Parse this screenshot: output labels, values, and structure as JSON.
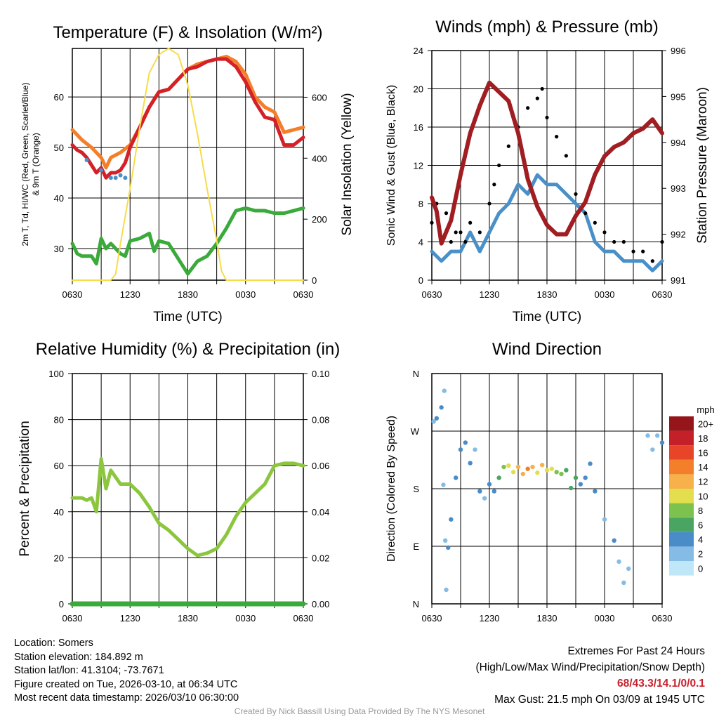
{
  "chart_data": [
    {
      "type": "line",
      "title": "Temperature (F) & Insolation (W/m²)",
      "xlabel": "Time (UTC)",
      "ylabel": "2m T, Td, HI/WC (Red, Green, Scarlet/Blue)",
      "ylabel2": "& 9m T (Orange)",
      "y2label": "Solar Insolation (Yellow)",
      "x_ticks": [
        "0630",
        "1230",
        "1830",
        "0030",
        "0630"
      ],
      "y_ticks": [
        30,
        40,
        50,
        60
      ],
      "y2_ticks": [
        0,
        200,
        400,
        600
      ],
      "ylim": [
        23.75,
        69.6
      ],
      "y2lim": [
        0,
        760
      ],
      "series": [
        {
          "name": "9m T",
          "color": "#f47f2a",
          "axis": "left",
          "x": [
            0,
            1,
            2,
            3,
            3.5,
            4,
            5,
            6,
            7,
            8,
            9,
            10,
            11,
            12,
            13,
            14,
            15,
            16,
            17,
            18,
            19,
            20,
            21,
            22,
            23,
            24
          ],
          "y": [
            53.5,
            51.5,
            50,
            48,
            46,
            48,
            49,
            50.5,
            54,
            58,
            61,
            61.5,
            63.5,
            65.5,
            66.5,
            67,
            67.5,
            68,
            67,
            64.5,
            60,
            58,
            57,
            53,
            53.5,
            54
          ]
        },
        {
          "name": "2m T",
          "color": "#d42027",
          "axis": "left",
          "x": [
            0,
            0.5,
            1,
            1.5,
            2,
            2.5,
            3,
            3.5,
            4,
            4.5,
            5,
            5.5,
            6,
            7,
            8,
            9,
            10,
            11,
            12,
            13,
            14,
            15,
            16,
            17,
            18,
            19,
            20,
            21,
            22,
            23,
            24
          ],
          "y": [
            50.5,
            49.5,
            49,
            48,
            46.5,
            45,
            46,
            44,
            45,
            45,
            45.5,
            47,
            50,
            54,
            58,
            61,
            61.5,
            63.5,
            65.5,
            66,
            67,
            67.5,
            67.5,
            66,
            63,
            59,
            56,
            55.5,
            50.5,
            50.5,
            52
          ]
        },
        {
          "name": "Td",
          "color": "#3aaa3a",
          "axis": "left",
          "x": [
            0,
            0.5,
            1,
            2,
            2.5,
            3,
            3.5,
            4,
            5,
            5.5,
            6,
            7,
            8,
            8.5,
            9,
            10,
            11,
            12,
            13,
            14,
            15,
            16,
            17,
            18,
            19,
            20,
            21,
            22,
            23,
            24
          ],
          "y": [
            31,
            29,
            28.5,
            28.5,
            27,
            32,
            30,
            31,
            29,
            28.5,
            31.5,
            32,
            33,
            29.5,
            31.5,
            31,
            28,
            25,
            27.5,
            28.5,
            31,
            34,
            37.5,
            38,
            37.5,
            37.5,
            37,
            37,
            37.5,
            38
          ]
        },
        {
          "name": "HI/WC",
          "color": "#4a90c8",
          "axis": "left",
          "type": "scatter",
          "x": [
            1.5,
            3,
            4,
            4.5,
            5,
            5.5
          ],
          "y": [
            47.5,
            45.5,
            44,
            44,
            44.5,
            44
          ]
        },
        {
          "name": "Solar Insolation",
          "color": "#f7dc4a",
          "axis": "right",
          "x": [
            0,
            4,
            4.5,
            5,
            6,
            7,
            8,
            9,
            10,
            11,
            12,
            13,
            14,
            15,
            15.5,
            16,
            24
          ],
          "y": [
            0,
            0,
            20,
            120,
            300,
            500,
            680,
            740,
            760,
            740,
            640,
            480,
            300,
            130,
            30,
            0,
            0
          ]
        }
      ]
    },
    {
      "type": "line",
      "title": "Winds (mph) & Pressure (mb)",
      "xlabel": "Time (UTC)",
      "ylabel": "Sonic Wind & Gust (Blue, Black)",
      "y2label": "Station Pressure (Maroon)",
      "x_ticks": [
        "0630",
        "1230",
        "1830",
        "0030",
        "0630"
      ],
      "y_ticks": [
        0,
        4,
        8,
        12,
        16,
        20,
        24
      ],
      "y2_ticks": [
        991,
        992,
        993,
        994,
        995,
        996
      ],
      "ylim": [
        0,
        24
      ],
      "y2lim": [
        991,
        996
      ],
      "series": [
        {
          "name": "Sonic Wind",
          "color": "#4a90c8",
          "axis": "left",
          "x": [
            0,
            1,
            2,
            3,
            4,
            5,
            6,
            7,
            8,
            9,
            10,
            11,
            12,
            13,
            14,
            15,
            16,
            17,
            18,
            19,
            20,
            21,
            22,
            23,
            24
          ],
          "y": [
            3,
            2,
            3,
            3,
            5,
            3,
            5,
            7,
            8,
            10,
            9,
            11,
            10,
            10,
            9,
            8,
            7,
            4,
            3,
            3,
            2,
            2,
            2,
            1,
            2
          ]
        },
        {
          "name": "Gust",
          "color": "#000000",
          "axis": "left",
          "type": "scatter",
          "x": [
            0,
            0.5,
            1,
            1.5,
            2,
            2.5,
            3,
            3.5,
            4,
            5,
            6,
            6.5,
            7,
            8,
            9,
            10,
            11,
            11.5,
            12,
            13,
            14,
            15,
            16,
            17,
            18,
            19,
            20,
            21,
            22,
            23,
            24
          ],
          "y": [
            6,
            8,
            4,
            7,
            4,
            5,
            5,
            4,
            6,
            5,
            8,
            10,
            12,
            14,
            16,
            18,
            19,
            20,
            17,
            15,
            13,
            9,
            7,
            6,
            5,
            4,
            4,
            3,
            3,
            2,
            4
          ]
        },
        {
          "name": "Station Pressure",
          "color": "#a01e22",
          "axis": "right",
          "x": [
            0,
            0.5,
            1,
            2,
            3,
            4,
            5,
            6,
            6.5,
            7,
            8,
            9,
            10,
            11,
            12,
            13,
            14,
            15,
            16,
            17,
            18,
            19,
            20,
            21,
            22,
            23,
            24
          ],
          "y": [
            992.8,
            992.5,
            991.8,
            992.3,
            993.3,
            994.2,
            994.8,
            995.3,
            995.2,
            995.1,
            994.9,
            994.2,
            993.2,
            992.6,
            992.2,
            992,
            992,
            992.4,
            992.7,
            993.3,
            993.7,
            993.9,
            994,
            994.2,
            994.3,
            994.5,
            994.2
          ]
        }
      ]
    },
    {
      "type": "line",
      "title": "Relative Humidity (%) & Precipitation (in)",
      "ylabel": "Percent & Precipitation",
      "x_ticks": [
        "0630",
        "1230",
        "1830",
        "0030",
        "0630"
      ],
      "y_ticks": [
        0,
        20,
        40,
        60,
        80,
        100
      ],
      "y2_ticks": [
        "0.00",
        "0.02",
        "0.04",
        "0.06",
        "0.08",
        "0.10"
      ],
      "ylim": [
        0,
        100
      ],
      "y2lim": [
        0,
        0.1
      ],
      "series": [
        {
          "name": "Relative Humidity",
          "color": "#8cc63f",
          "axis": "left",
          "x": [
            0,
            1,
            1.5,
            2,
            2.5,
            3,
            3.5,
            4,
            5,
            6,
            7,
            8,
            9,
            10,
            11,
            12,
            13,
            14,
            15,
            16,
            17,
            18,
            19,
            20,
            21,
            22,
            23,
            24
          ],
          "y": [
            46,
            46,
            45,
            46,
            40,
            63,
            50,
            58,
            52,
            52,
            48,
            42,
            35,
            32,
            28,
            24,
            21,
            22,
            24,
            30,
            38,
            44,
            48,
            52,
            60,
            61,
            61,
            60
          ]
        },
        {
          "name": "Precipitation",
          "color": "#3aaa3a",
          "axis": "right",
          "x": [
            0,
            24
          ],
          "y": [
            0,
            0
          ]
        }
      ]
    },
    {
      "type": "scatter",
      "title": "Wind Direction",
      "ylabel": "Direction (Colored By Speed)",
      "x_ticks": [
        "0630",
        "1230",
        "1830",
        "0030",
        "0630"
      ],
      "y_ticks": [
        "N",
        "E",
        "S",
        "W",
        "N"
      ],
      "ylim": [
        0,
        360
      ],
      "legend_title": "mph",
      "legend_labels": [
        "0",
        "2",
        "4",
        "6",
        "8",
        "10",
        "12",
        "14",
        "16",
        "18",
        "20+"
      ],
      "legend_colors": [
        "#bfe7f8",
        "#84bce6",
        "#4a8cc8",
        "#4aa462",
        "#7dc24f",
        "#e2de4e",
        "#f7b04a",
        "#f47f2a",
        "#e8442a",
        "#c4202a",
        "#96151a"
      ],
      "x": [
        0.2,
        0.5,
        1,
        1.3,
        1.2,
        1.4,
        1.5,
        1.7,
        2,
        2.5,
        3,
        3.5,
        4,
        4.5,
        5,
        5.5,
        6,
        6.5,
        7,
        7.5,
        8,
        8.5,
        9,
        9.5,
        10,
        10.5,
        11,
        11.5,
        12,
        12.5,
        13,
        13.5,
        14,
        14.5,
        15,
        15.5,
        16,
        16.5,
        17,
        18,
        19,
        19.5,
        20,
        20.5,
        22.5,
        23,
        23.5,
        24
      ],
      "direction": [
        285,
        290,
        307,
        333,
        186,
        99,
        22,
        88,
        132,
        197,
        241,
        252,
        220,
        241,
        176,
        165,
        187,
        176,
        197,
        214,
        216,
        206,
        214,
        203,
        211,
        214,
        205,
        217,
        209,
        211,
        206,
        203,
        209,
        181,
        197,
        187,
        197,
        219,
        176,
        132,
        99,
        66,
        33,
        55,
        263,
        241,
        263,
        252
      ],
      "speed": [
        2,
        4,
        3,
        1,
        2,
        2,
        1,
        3,
        3,
        3,
        3,
        4,
        3,
        2,
        3,
        2,
        4,
        3,
        6,
        8,
        9,
        10,
        11,
        12,
        14,
        12,
        10,
        11,
        9,
        10,
        8,
        7,
        6,
        6,
        5,
        4,
        4,
        3,
        3,
        2,
        3,
        2,
        2,
        1,
        1,
        2,
        2,
        3
      ]
    }
  ],
  "time_axis_label": "Time (UTC)",
  "info": {
    "location": "Location: Somers",
    "elevation": "Station elevation: 184.892 m",
    "latlon": "Station lat/lon: 41.3104; -73.7671",
    "created": "Figure created on Tue, 2026-03-10, at 06:34 UTC",
    "recent": "Most recent data timestamp: 2026/03/10 06:30:00"
  },
  "extremes": {
    "title": "Extremes For Past 24 Hours",
    "subtitle": "(High/Low/Max Wind/Precipitation/Snow Depth)",
    "values": "68/43.3/14.1/0/0.1",
    "max_gust": "Max Gust: 21.5 mph On 03/09 at 1945 UTC"
  },
  "credit": "Created By Nick Bassill Using Data Provided By The NYS Mesonet"
}
